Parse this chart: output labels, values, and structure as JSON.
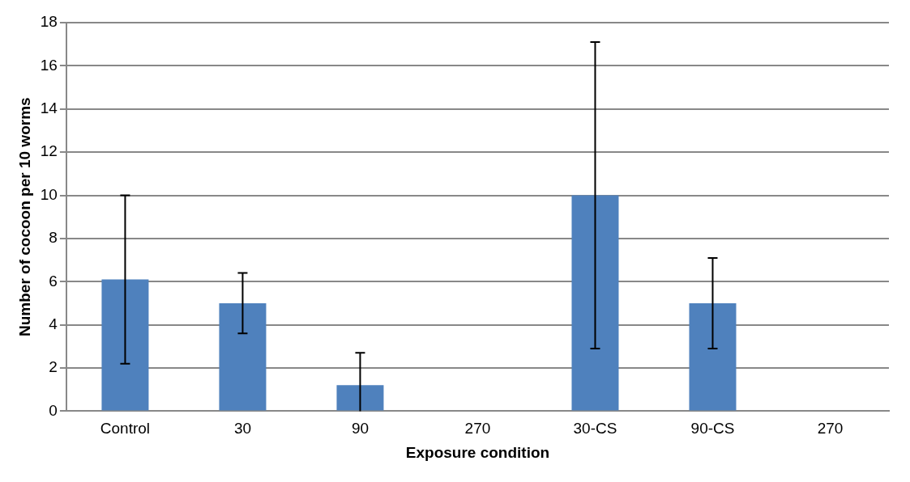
{
  "chart_data": {
    "type": "bar",
    "xlabel": "Exposure condition",
    "ylabel": "Number of cocoon per 10 worms",
    "categories": [
      "Control",
      "30",
      "90",
      "270",
      "30-CS",
      "90-CS",
      "270"
    ],
    "values": [
      6.1,
      5,
      1.2,
      0,
      10,
      5,
      0
    ],
    "errors": [
      [
        2.2,
        10
      ],
      [
        3.6,
        6.4
      ],
      [
        0,
        2.7
      ],
      null,
      [
        2.9,
        17.1
      ],
      [
        2.9,
        7.1
      ],
      null
    ],
    "color": "#4f81bd",
    "ylim": [
      0,
      18
    ],
    "yticks": [
      0,
      2,
      4,
      6,
      8,
      10,
      12,
      14,
      16,
      18
    ],
    "grid": "y",
    "legend": false
  }
}
